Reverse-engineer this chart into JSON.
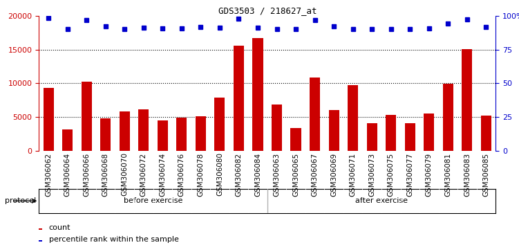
{
  "title": "GDS3503 / 218627_at",
  "categories": [
    "GSM306062",
    "GSM306064",
    "GSM306066",
    "GSM306068",
    "GSM306070",
    "GSM306072",
    "GSM306074",
    "GSM306076",
    "GSM306078",
    "GSM306080",
    "GSM306082",
    "GSM306084",
    "GSM306063",
    "GSM306065",
    "GSM306067",
    "GSM306069",
    "GSM306071",
    "GSM306073",
    "GSM306075",
    "GSM306077",
    "GSM306079",
    "GSM306081",
    "GSM306083",
    "GSM306085"
  ],
  "bar_values": [
    9300,
    3200,
    10200,
    4800,
    5800,
    6100,
    4500,
    4900,
    5100,
    7900,
    15600,
    16700,
    6900,
    3400,
    10900,
    6000,
    9700,
    4100,
    5300,
    4100,
    5500,
    9900,
    15100,
    5200
  ],
  "percentile_values": [
    98.5,
    90.0,
    97.0,
    92.5,
    90.5,
    91.5,
    91.0,
    91.0,
    92.0,
    91.5,
    98.0,
    91.5,
    90.5,
    90.5,
    97.0,
    92.5,
    90.5,
    90.5,
    90.5,
    90.5,
    91.0,
    94.5,
    97.5,
    92.0
  ],
  "bar_color": "#cc0000",
  "dot_color": "#0000cc",
  "left_ylim": [
    0,
    20000
  ],
  "right_ylim": [
    0,
    100
  ],
  "left_yticks": [
    0,
    5000,
    10000,
    15000,
    20000
  ],
  "right_yticks": [
    0,
    25,
    50,
    75,
    100
  ],
  "right_yticklabels": [
    "0",
    "25",
    "50",
    "75",
    "100%"
  ],
  "grid_values": [
    5000,
    10000,
    15000
  ],
  "background_color": "#ffffff",
  "plot_bg_color": "#ffffff",
  "before_exercise_count": 12,
  "after_exercise_count": 12,
  "before_label": "before exercise",
  "after_label": "after exercise",
  "before_color": "#ccffcc",
  "after_color": "#55dd55",
  "protocol_label": "protocol",
  "legend_count_label": "count",
  "legend_pct_label": "percentile rank within the sample"
}
